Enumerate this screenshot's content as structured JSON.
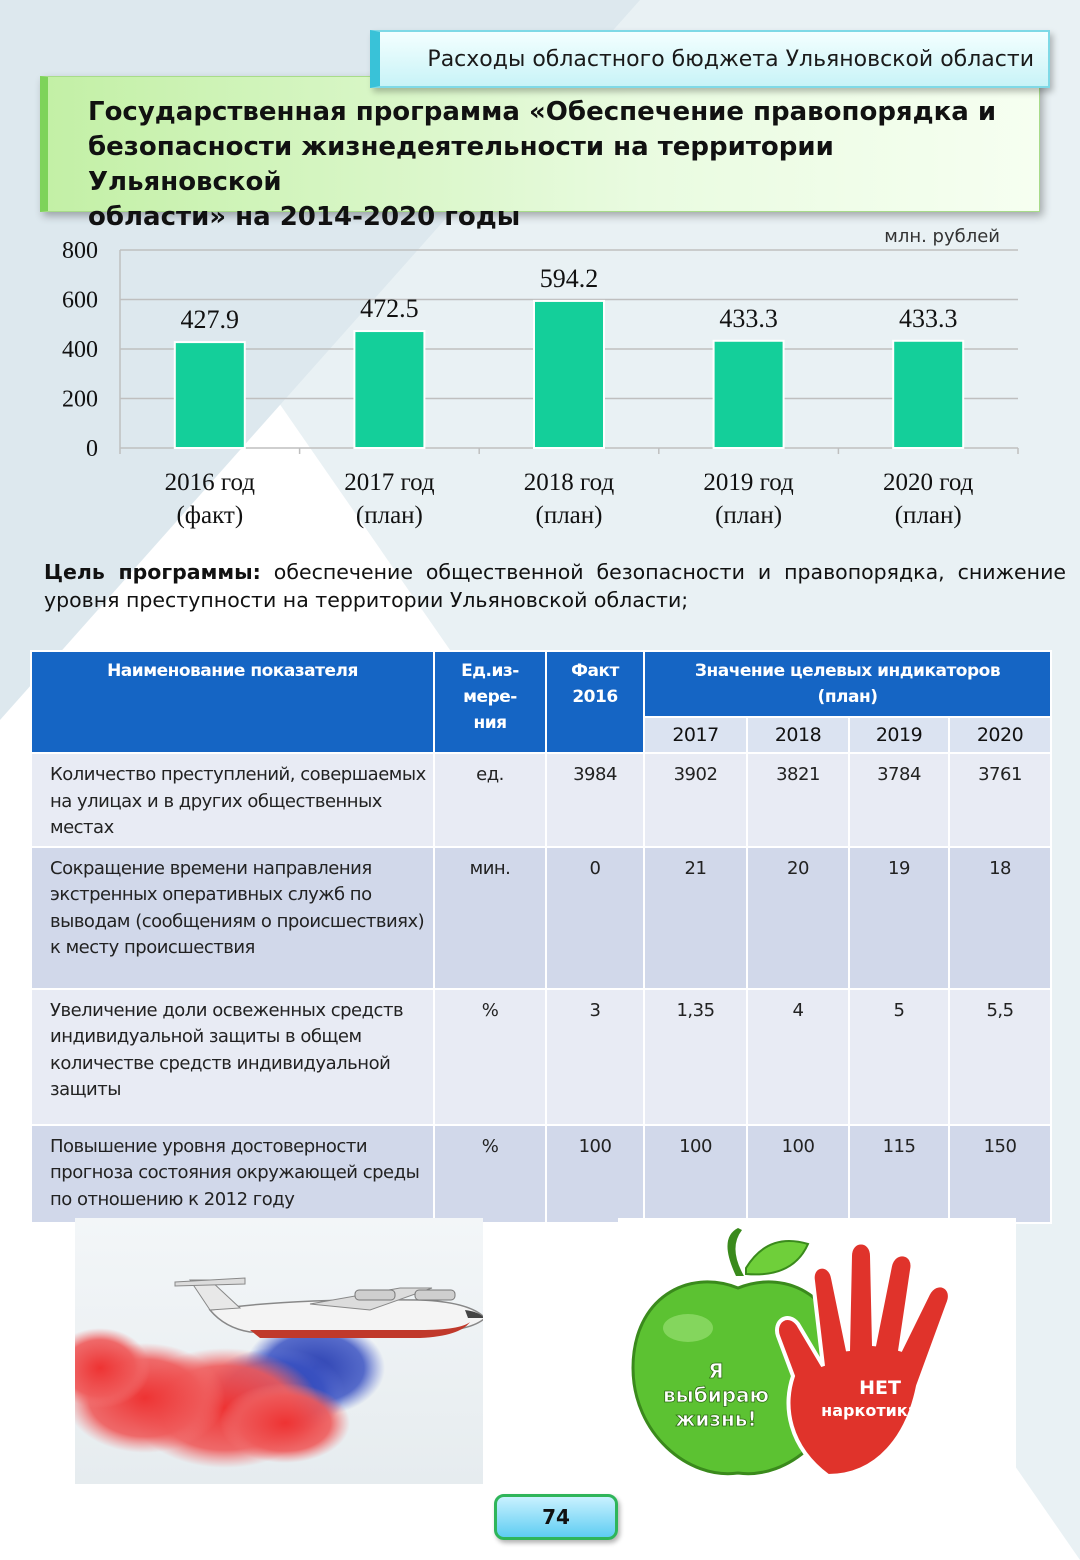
{
  "header": {
    "section_title": "Расходы областного бюджета Ульяновской области"
  },
  "title": {
    "line1": "Государственная программа «Обеспечение правопорядка и",
    "line2": "безопасности жизнедеятельности на территории Ульяновской",
    "line3": "области» на 2014-2020 годы"
  },
  "chart_data": {
    "type": "bar",
    "unit_label": "млн. рублей",
    "categories": [
      {
        "line1": "2016 год",
        "line2": "(факт)"
      },
      {
        "line1": "2017 год",
        "line2": "(план)"
      },
      {
        "line1": "2018 год",
        "line2": "(план)"
      },
      {
        "line1": "2019 год",
        "line2": "(план)"
      },
      {
        "line1": "2020 год",
        "line2": "(план)"
      }
    ],
    "values": [
      427.9,
      472.5,
      594.2,
      433.3,
      433.3
    ],
    "yticks": [
      0,
      200,
      400,
      600,
      800
    ],
    "ylim": [
      0,
      800
    ],
    "bar_color": "#14cf9a",
    "grid": true
  },
  "goal": {
    "label": "Цель программы:",
    "text": " обеспечение общественной безопасности и правопорядка, снижение уровня преступности на территории Ульяновской области;"
  },
  "table": {
    "headers": {
      "name": "Наименование показателя",
      "unit": "Ед.из-мере-ния",
      "fact": "Факт 2016",
      "target": "Значение целевых индикаторов (план)",
      "years": [
        "2017",
        "2018",
        "2019",
        "2020"
      ]
    },
    "rows": [
      {
        "name": "Количество преступлений, совершаемых на улицах и в других общественных местах",
        "unit": "ед.",
        "fact": "3984",
        "v2017": "3902",
        "v2018": "3821",
        "v2019": "3784",
        "v2020": "3761"
      },
      {
        "name": "Сокращение времени направления экстренных оперативных служб по выводам (сообщениям о происшествиях) к месту происшествия",
        "unit": "мин.",
        "fact": "0",
        "v2017": "21",
        "v2018": "20",
        "v2019": "19",
        "v2020": "18"
      },
      {
        "name": "Увеличение доли освеженных средств индивидуальной защиты в общем количестве средств индивидуальной защиты",
        "unit": "%",
        "fact": "3",
        "v2017": "1,35",
        "v2018": "4",
        "v2019": "5",
        "v2020": "5,5"
      },
      {
        "name": "Повышение уровня достоверности прогноза состояния окружающей среды по отношению к 2012 году",
        "unit": "%",
        "fact": "100",
        "v2017": "100",
        "v2018": "100",
        "v2019": "115",
        "v2020": "150"
      }
    ]
  },
  "poster": {
    "apple_text_1": "Я",
    "apple_text_2": "выбираю",
    "apple_text_3": "жизнь!",
    "hand_text_1": "НЕТ",
    "hand_text_2": "наркотикам!",
    "apple_color": "#5cc232",
    "hand_color": "#e0332b"
  },
  "footer": {
    "page_number": "74"
  }
}
